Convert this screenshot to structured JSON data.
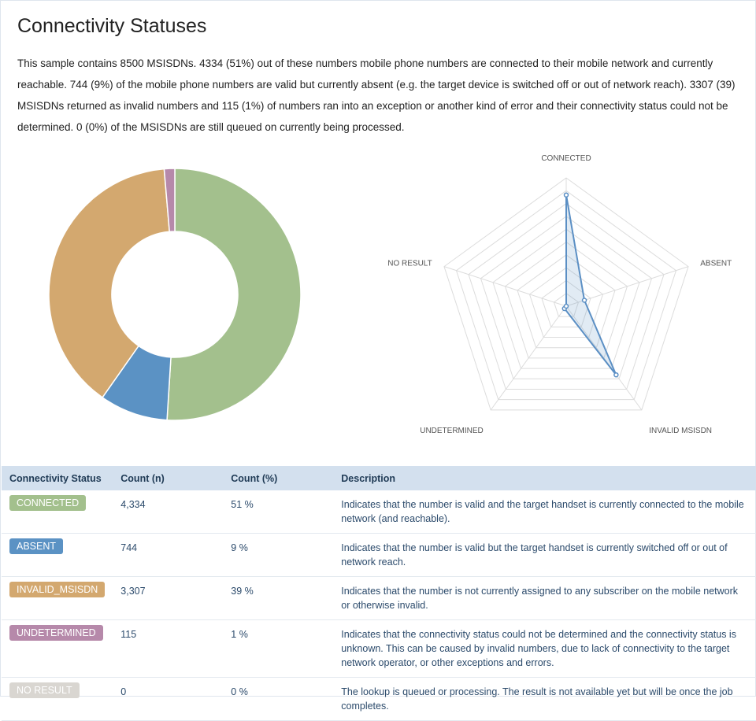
{
  "title": "Connectivity Statuses",
  "summary": "This sample contains 8500 MSISDNs. 4334 (51%) out of these numbers mobile phone numbers are connected to their mobile network and currently reachable. 744 (9%) of the mobile phone numbers are valid but currently absent (e.g. the target device is switched off or out of network reach). 3307 (39) MSISDNs returned as invalid numbers and 115 (1%) of numbers ran into an exception or another kind of error and their connectivity status could not be determined. 0 (0%) of the MSISDNs are still queued on currently being processed.",
  "chart_data": [
    {
      "type": "pie",
      "donut": true,
      "categories": [
        "CONNECTED",
        "ABSENT",
        "INVALID_MSISDN",
        "UNDETERMINED",
        "NO RESULT"
      ],
      "values": [
        4334,
        744,
        3307,
        115,
        0
      ],
      "colors": [
        "#a3c08d",
        "#5b92c4",
        "#d3a86f",
        "#b689aa",
        "#d9d6d1"
      ]
    },
    {
      "type": "radar",
      "axes": [
        "CONNECTED",
        "ABSENT",
        "INVALID MSISDN",
        "UNDETERMINED",
        "NO RESULT"
      ],
      "values": [
        4334,
        744,
        3307,
        115,
        0
      ],
      "rmax": 5000,
      "grid_levels": 10,
      "color": "#5b8fc4"
    }
  ],
  "table": {
    "headers": [
      "Connectivity Status",
      "Count (n)",
      "Count (%)",
      "Description"
    ],
    "rows": [
      {
        "status": "CONNECTED",
        "color": "#a3c08d",
        "count": "4,334",
        "pct": "51 %",
        "desc": "Indicates that the number is valid and the target handset is currently connected to the mobile network (and reachable)."
      },
      {
        "status": "ABSENT",
        "color": "#5b92c4",
        "count": "744",
        "pct": "9 %",
        "desc": "Indicates that the number is valid but the target handset is currently switched off or out of network reach."
      },
      {
        "status": "INVALID_MSISDN",
        "color": "#d3a86f",
        "count": "3,307",
        "pct": "39 %",
        "desc": "Indicates that the number is not currently assigned to any subscriber on the mobile network or otherwise invalid."
      },
      {
        "status": "UNDETERMINED",
        "color": "#b689aa",
        "count": "115",
        "pct": "1 %",
        "desc": "Indicates that the connectivity status could not be determined and the connectivity status is unknown. This can be caused by invalid numbers, due to lack of connectivity to the target network operator, or other exceptions and errors."
      },
      {
        "status": "NO RESULT",
        "color": "#d9d6d1",
        "count": "0",
        "pct": "0 %",
        "desc": "The lookup is queued or processing. The result is not available yet but will be once the job completes."
      }
    ]
  }
}
